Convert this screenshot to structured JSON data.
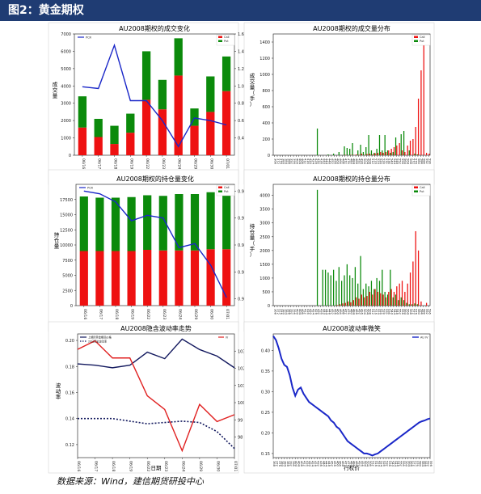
{
  "page": {
    "title": "图2：黄金期权",
    "source": "数据来源：Wind，建信期货研投中心"
  },
  "colors": {
    "call": "#ee1111",
    "put": "#0b8a0b",
    "line": "#1a27c8",
    "hv1": "#12185e",
    "hv2": "#12185e",
    "iv": "#e02020"
  },
  "chart_data": [
    {
      "id": "c1",
      "type": "bar",
      "stacked": true,
      "title": "AU2008期权的成交变化",
      "ylabel": "成交量",
      "categories": [
        "06/16",
        "06/17",
        "06/18",
        "06/19",
        "06/22",
        "06/23",
        "06/24",
        "06/29",
        "06/30",
        "07/01"
      ],
      "series": [
        {
          "name": "Call",
          "values": [
            1600,
            1050,
            650,
            1300,
            3200,
            2650,
            4600,
            1700,
            2500,
            3700
          ]
        },
        {
          "name": "Put",
          "values": [
            1800,
            1050,
            1050,
            1100,
            2800,
            1700,
            2150,
            1000,
            2050,
            2000
          ]
        },
        {
          "name": "PCR",
          "axis": "right",
          "values": [
            0.99,
            0.97,
            1.47,
            0.83,
            0.83,
            0.6,
            0.3,
            0.63,
            0.6,
            0.55
          ]
        }
      ],
      "ylim": [
        0,
        7000
      ],
      "y2lim": [
        0.2,
        1.6
      ],
      "yticks": [
        0,
        1000,
        2000,
        3000,
        4000,
        5000,
        6000,
        7000
      ],
      "y2ticks": [
        0.4,
        0.6,
        0.8,
        1.0,
        1.2,
        1.4,
        1.6
      ],
      "legend": "top-right"
    },
    {
      "id": "c2",
      "type": "bar",
      "title": "AU2008期权的成交量分布",
      "ylabel": "成交量（手）",
      "categories": [
        "368",
        "372",
        "376",
        "380",
        "384",
        "388",
        "392",
        "396",
        "400",
        "404",
        "408",
        "412",
        "416",
        "420",
        "424",
        "428",
        "432",
        "436",
        "440",
        "444",
        "448",
        "452",
        "456",
        "460",
        "464",
        "468",
        "472",
        "476",
        "480",
        "484",
        "488",
        "492",
        "496",
        "500",
        "504",
        "508",
        "512",
        "516",
        "520",
        "524",
        "528",
        "532",
        "536",
        "540",
        "544",
        "548",
        "552",
        "556",
        "560",
        "564",
        "568",
        "572",
        "576",
        "580",
        "584",
        "588",
        "592",
        "596"
      ],
      "series": [
        {
          "name": "Call",
          "values": [
            0,
            0,
            0,
            0,
            0,
            0,
            0,
            0,
            0,
            0,
            0,
            0,
            0,
            0,
            0,
            0,
            0,
            0,
            0,
            0,
            0,
            0,
            0,
            0,
            0,
            0,
            5,
            0,
            5,
            5,
            10,
            5,
            20,
            5,
            15,
            20,
            10,
            25,
            30,
            40,
            30,
            40,
            60,
            80,
            100,
            120,
            150,
            60,
            40,
            120,
            180,
            200,
            350,
            700,
            1050,
            1400,
            30,
            20
          ]
        },
        {
          "name": "Put",
          "values": [
            0,
            0,
            0,
            0,
            0,
            0,
            0,
            0,
            0,
            0,
            0,
            0,
            0,
            0,
            0,
            0,
            330,
            0,
            0,
            0,
            10,
            0,
            20,
            0,
            40,
            0,
            110,
            90,
            80,
            150,
            0,
            60,
            130,
            40,
            100,
            250,
            60,
            30,
            80,
            250,
            60,
            250,
            60,
            30,
            40,
            220,
            0,
            260,
            300,
            0,
            60,
            0,
            20,
            10,
            0,
            0,
            0,
            0
          ]
        }
      ],
      "ylim": [
        0,
        1500
      ],
      "yticks": [
        0,
        200,
        400,
        600,
        800,
        1000,
        1200,
        1400
      ],
      "legend": "top-right"
    },
    {
      "id": "c3",
      "type": "bar",
      "stacked": true,
      "title": "AU2008期权的持仓量变化",
      "ylabel": "持仓量",
      "categories": [
        "06/16",
        "06/17",
        "06/18",
        "06/19",
        "06/22",
        "06/23",
        "06/24",
        "06/29",
        "06/30",
        "07/01"
      ],
      "series": [
        {
          "name": "Call",
          "values": [
            9000,
            9000,
            9000,
            9000,
            9200,
            9100,
            9100,
            9100,
            9300,
            9300
          ]
        },
        {
          "name": "Put",
          "values": [
            9000,
            8800,
            8800,
            8900,
            9000,
            9000,
            9300,
            9300,
            9400,
            9300
          ]
        },
        {
          "name": "PCR",
          "axis": "right",
          "values": [
            0.98,
            0.978,
            0.972,
            0.958,
            0.962,
            0.96,
            0.938,
            0.941,
            0.925,
            0.901
          ]
        }
      ],
      "ylim": [
        0,
        20000
      ],
      "y2lim": [
        0.895,
        0.985
      ],
      "yticks": [
        0,
        2500,
        5000,
        7500,
        10000,
        12500,
        15000,
        17500
      ],
      "y2ticks": [
        0.9,
        0.92,
        0.94,
        0.96,
        0.98
      ],
      "legend": "top-left"
    },
    {
      "id": "c4",
      "type": "bar",
      "title": "AU2008期权的持仓量分布",
      "ylabel": "持仓量（手）",
      "categories": [
        "368",
        "372",
        "376",
        "380",
        "384",
        "388",
        "392",
        "396",
        "400",
        "404",
        "408",
        "412",
        "416",
        "420",
        "424",
        "428",
        "432",
        "436",
        "440",
        "444",
        "448",
        "452",
        "456",
        "460",
        "464",
        "468",
        "472",
        "476",
        "480",
        "484",
        "488",
        "492",
        "496",
        "500",
        "504",
        "508",
        "512",
        "516",
        "520",
        "524",
        "528",
        "532",
        "536",
        "540",
        "544",
        "548",
        "552",
        "556",
        "560",
        "564",
        "568",
        "572",
        "576",
        "580",
        "584",
        "588",
        "592",
        "596"
      ],
      "series": [
        {
          "name": "Call",
          "values": [
            0,
            0,
            0,
            0,
            0,
            0,
            0,
            0,
            0,
            0,
            0,
            0,
            0,
            0,
            0,
            0,
            0,
            0,
            0,
            0,
            0,
            0,
            0,
            20,
            50,
            80,
            100,
            150,
            120,
            200,
            300,
            250,
            400,
            300,
            350,
            500,
            400,
            600,
            500,
            450,
            400,
            300,
            500,
            600,
            500,
            700,
            800,
            900,
            500,
            800,
            1200,
            1600,
            2700,
            2000,
            150,
            0,
            100,
            0
          ]
        },
        {
          "name": "Put",
          "values": [
            0,
            0,
            0,
            0,
            0,
            0,
            0,
            0,
            0,
            0,
            0,
            0,
            0,
            0,
            0,
            0,
            4200,
            0,
            1300,
            1300,
            1200,
            1100,
            1300,
            900,
            1400,
            900,
            1100,
            1500,
            1100,
            1000,
            1400,
            800,
            1800,
            600,
            800,
            700,
            900,
            600,
            1000,
            900,
            1300,
            500,
            400,
            1300,
            300,
            400,
            200,
            300,
            200,
            100,
            50,
            50,
            80,
            50,
            0,
            0,
            0,
            0
          ]
        }
      ],
      "ylim": [
        0,
        4400
      ],
      "yticks": [
        0,
        500,
        1000,
        1500,
        2000,
        2500,
        3000,
        3500,
        4000
      ],
      "legend": "top-right"
    },
    {
      "id": "c5",
      "type": "line",
      "title": "AU2008隐含波动率走势",
      "xlabel": "日期",
      "ylabel": "波动率",
      "y2label": "价格",
      "categories": [
        "06/16",
        "06/17",
        "06/18",
        "06/19",
        "06/22",
        "06/23",
        "06/24",
        "06/29",
        "06/30",
        "07/01"
      ],
      "series": [
        {
          "name": "上期所黄金期货价格",
          "axis": "left",
          "values": [
            0.182,
            0.181,
            0.179,
            0.181,
            0.191,
            0.186,
            0.201,
            0.193,
            0.188,
            0.179
          ]
        },
        {
          "name": "20日历史波动率",
          "axis": "left",
          "values": [
            0.14,
            0.14,
            0.14,
            0.138,
            0.136,
            0.137,
            0.138,
            0.137,
            0.13,
            0.117
          ]
        },
        {
          "name": "IV",
          "axis": "right",
          "values": [
            103.1,
            103.6,
            102.6,
            102.6,
            100.4,
            99.6,
            97.2,
            99.9,
            98.9,
            99.3
          ]
        }
      ],
      "ylim": [
        0.11,
        0.205
      ],
      "y2lim": [
        96.8,
        104
      ],
      "yticks": [
        0.12,
        0.14,
        0.16,
        0.18,
        0.2
      ],
      "y2ticks": [
        98,
        99,
        100,
        101,
        102,
        103
      ],
      "legend": "top-left"
    },
    {
      "id": "c6",
      "type": "line",
      "title": "AU2008波动率微笑",
      "xlabel": "行权价",
      "categories": [
        "368",
        "372",
        "376",
        "380",
        "384",
        "388",
        "392",
        "396",
        "400",
        "404",
        "408",
        "412",
        "416",
        "420",
        "424",
        "428",
        "432",
        "436",
        "440",
        "444",
        "448",
        "452",
        "456",
        "460",
        "464",
        "468",
        "472",
        "476",
        "480",
        "484",
        "488",
        "492",
        "496",
        "500",
        "504",
        "508",
        "512",
        "516",
        "520",
        "524",
        "528",
        "532",
        "536",
        "540",
        "544",
        "548",
        "552",
        "556",
        "560",
        "564",
        "568",
        "572",
        "576",
        "580",
        "584",
        "588",
        "592",
        "596"
      ],
      "series": [
        {
          "name": "AU IV",
          "values": [
            0.435,
            0.425,
            0.405,
            0.38,
            0.365,
            0.36,
            0.34,
            0.31,
            0.29,
            0.305,
            0.31,
            0.295,
            0.285,
            0.275,
            0.27,
            0.265,
            0.26,
            0.255,
            0.25,
            0.245,
            0.24,
            0.23,
            0.225,
            0.215,
            0.21,
            0.2,
            0.19,
            0.18,
            0.175,
            0.17,
            0.165,
            0.16,
            0.155,
            0.15,
            0.15,
            0.148,
            0.145,
            0.148,
            0.15,
            0.155,
            0.16,
            0.165,
            0.17,
            0.175,
            0.18,
            0.185,
            0.19,
            0.195,
            0.2,
            0.205,
            0.21,
            0.215,
            0.22,
            0.225,
            0.228,
            0.23,
            0.233,
            0.235
          ]
        }
      ],
      "ylim": [
        0.14,
        0.44
      ],
      "yticks": [
        0.15,
        0.2,
        0.25,
        0.3,
        0.35,
        0.4
      ],
      "legend": "top-right"
    }
  ]
}
